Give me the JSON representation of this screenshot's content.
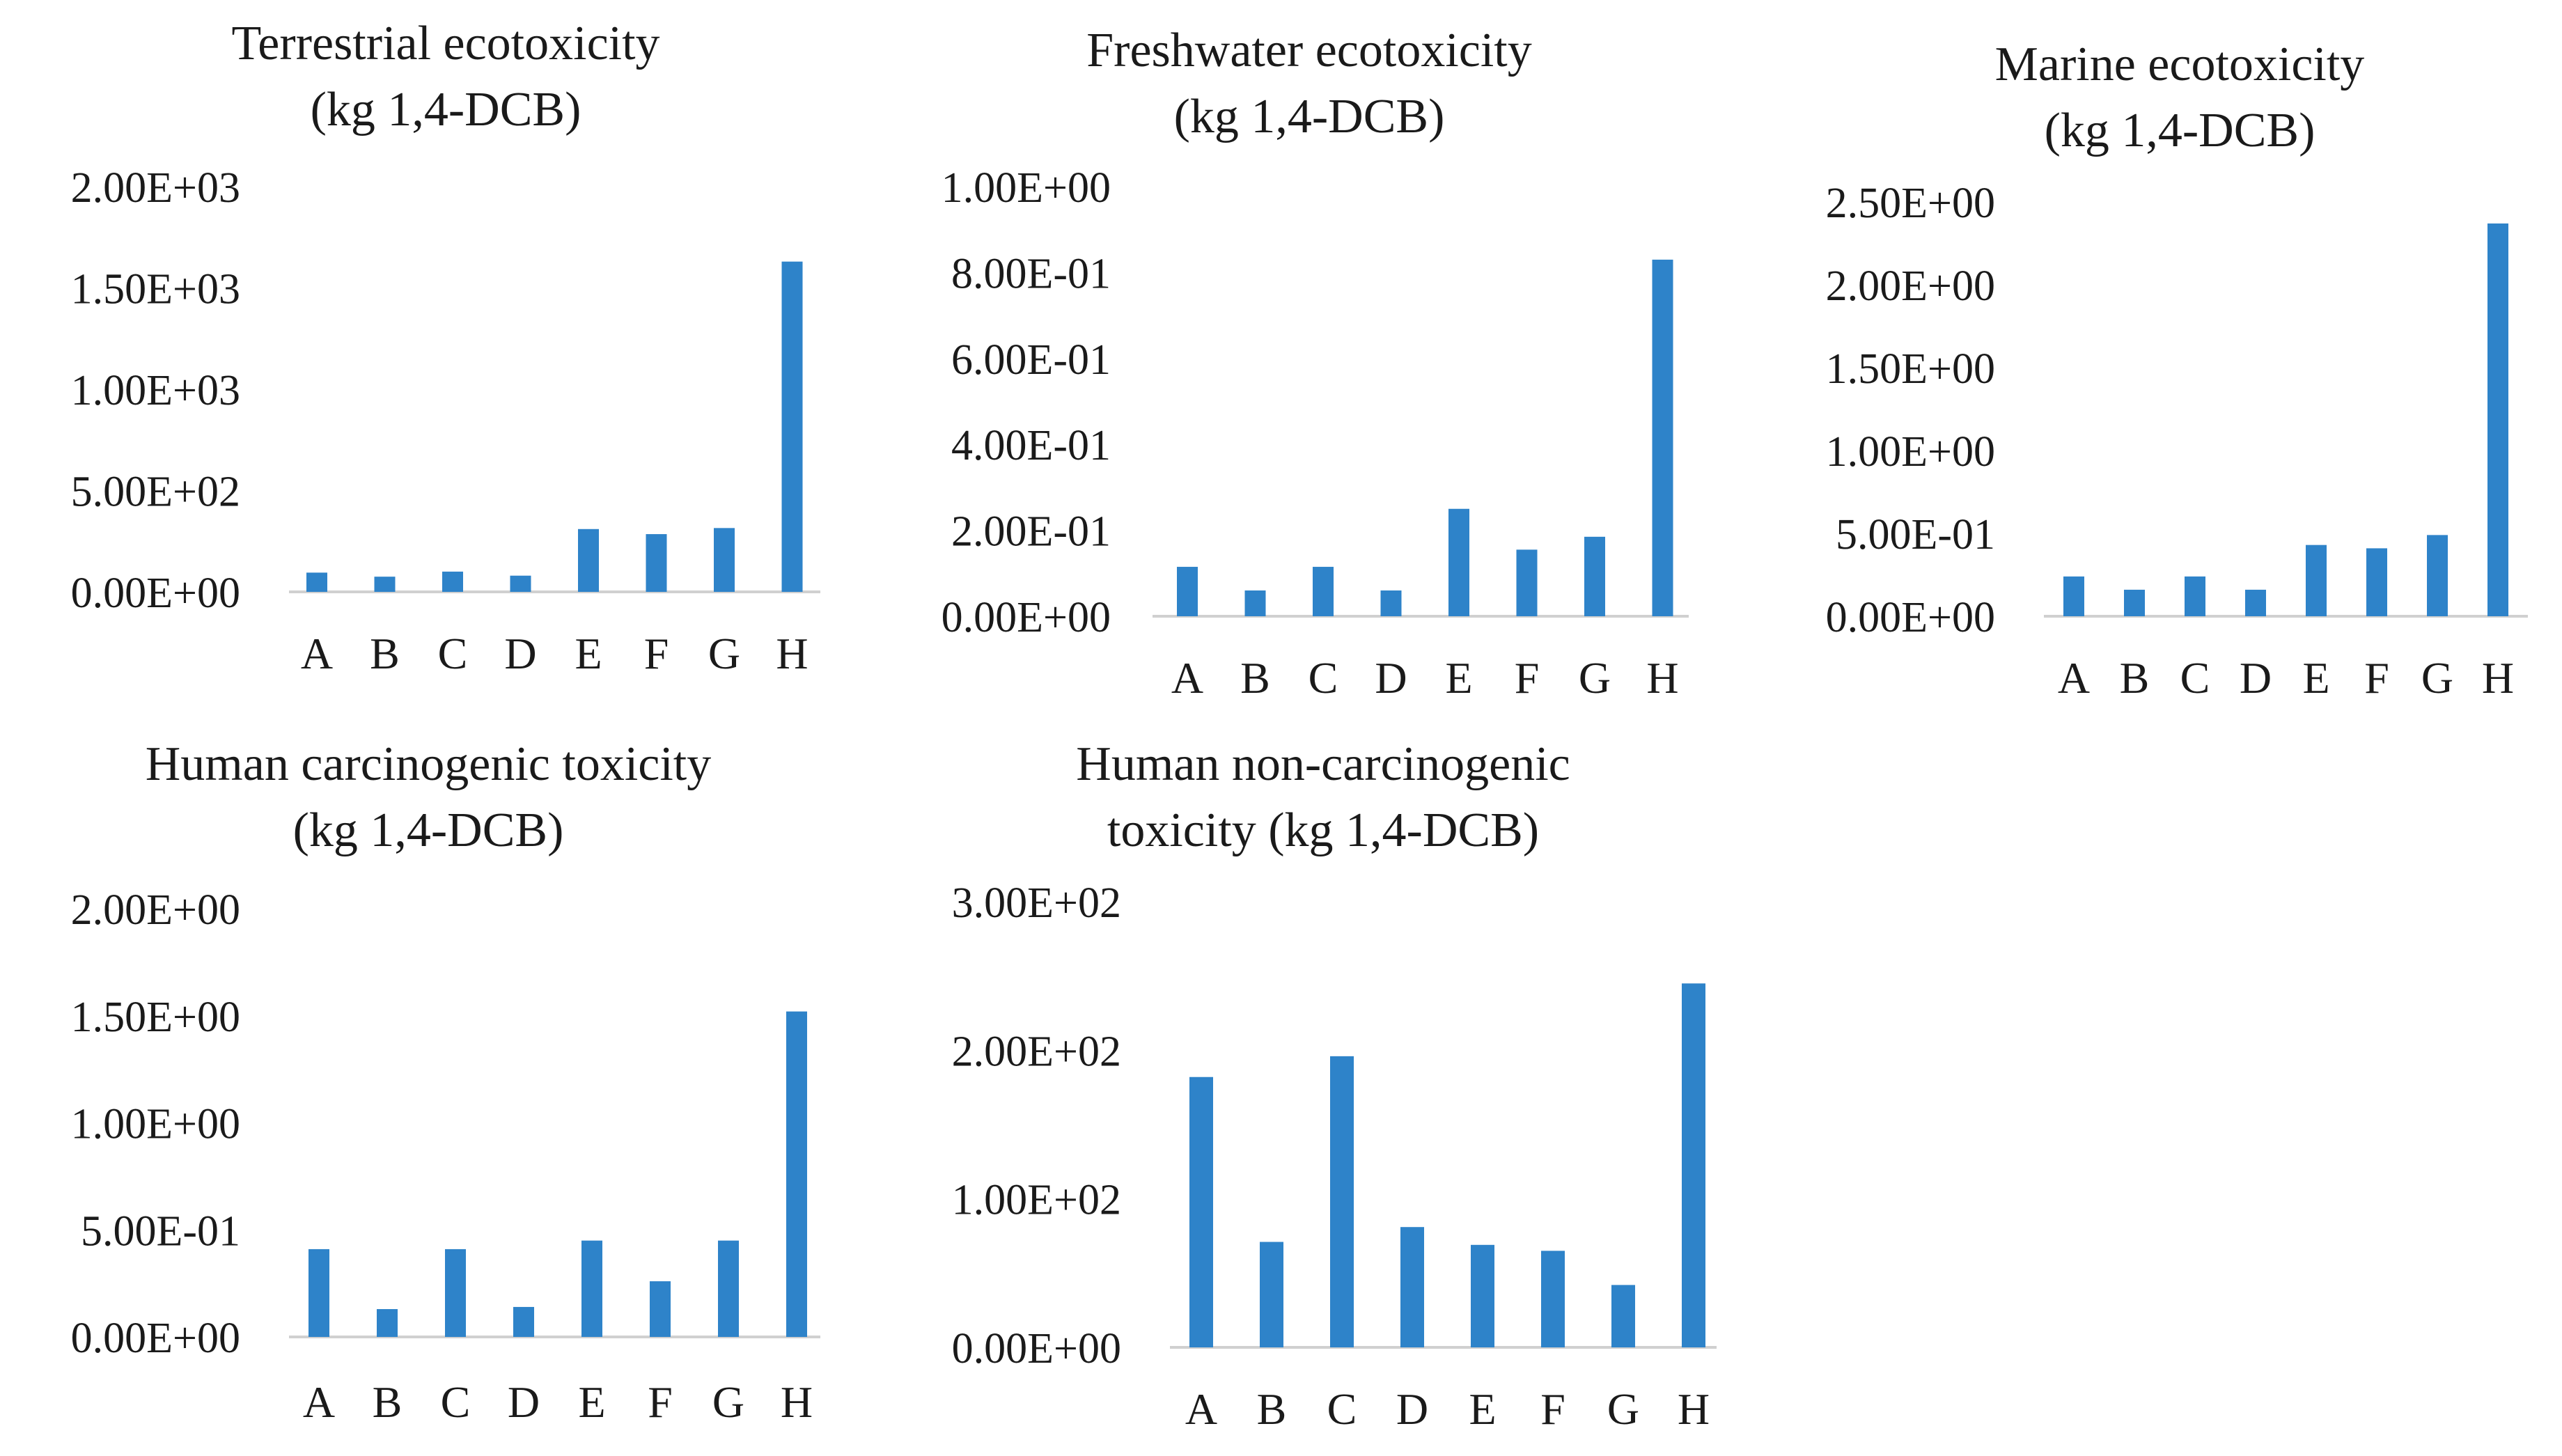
{
  "bar_color": "#2E83C9",
  "chart_data": [
    {
      "type": "bar",
      "title_lines": [
        "Terrestrial ecotoxicity",
        "(kg 1,4-DCB)"
      ],
      "categories": [
        "A",
        "B",
        "C",
        "D",
        "E",
        "F",
        "G",
        "H"
      ],
      "values": [
        95,
        75,
        100,
        80,
        310,
        285,
        315,
        1630
      ],
      "ylim": [
        0,
        2000
      ],
      "ytick_values": [
        0,
        500,
        1000,
        1500,
        2000
      ],
      "ytick_labels": [
        "0.00E+00",
        "5.00E+02",
        "1.00E+03",
        "1.50E+03",
        "2.00E+03"
      ],
      "xlabel": "",
      "ylabel": ""
    },
    {
      "type": "bar",
      "title_lines": [
        "Freshwater ecotoxicity",
        "(kg 1,4-DCB)"
      ],
      "categories": [
        "A",
        "B",
        "C",
        "D",
        "E",
        "F",
        "G",
        "H"
      ],
      "values": [
        0.115,
        0.06,
        0.115,
        0.06,
        0.25,
        0.155,
        0.185,
        0.83
      ],
      "ylim": [
        0,
        1.0
      ],
      "ytick_values": [
        0,
        0.2,
        0.4,
        0.6,
        0.8,
        1.0
      ],
      "ytick_labels": [
        "0.00E+00",
        "2.00E-01",
        "4.00E-01",
        "6.00E-01",
        "8.00E-01",
        "1.00E+00"
      ],
      "xlabel": "",
      "ylabel": ""
    },
    {
      "type": "bar",
      "title_lines": [
        "Marine ecotoxicity",
        "(kg 1,4-DCB)"
      ],
      "categories": [
        "A",
        "B",
        "C",
        "D",
        "E",
        "F",
        "G",
        "H"
      ],
      "values": [
        0.24,
        0.16,
        0.24,
        0.16,
        0.43,
        0.41,
        0.49,
        2.37
      ],
      "ylim": [
        0,
        2.5
      ],
      "ytick_values": [
        0,
        0.5,
        1.0,
        1.5,
        2.0,
        2.5
      ],
      "ytick_labels": [
        "0.00E+00",
        "5.00E-01",
        "1.00E+00",
        "1.50E+00",
        "2.00E+00",
        "2.50E+00"
      ],
      "xlabel": "",
      "ylabel": ""
    },
    {
      "type": "bar",
      "title_lines": [
        "Human carcinogenic toxicity",
        "(kg 1,4-DCB)"
      ],
      "categories": [
        "A",
        "B",
        "C",
        "D",
        "E",
        "F",
        "G",
        "H"
      ],
      "values": [
        0.41,
        0.13,
        0.41,
        0.14,
        0.45,
        0.26,
        0.45,
        1.52
      ],
      "ylim": [
        0,
        2.0
      ],
      "ytick_values": [
        0,
        0.5,
        1.0,
        1.5,
        2.0
      ],
      "ytick_labels": [
        "0.00E+00",
        "5.00E-01",
        "1.00E+00",
        "1.50E+00",
        "2.00E+00"
      ],
      "xlabel": "",
      "ylabel": ""
    },
    {
      "type": "bar",
      "title_lines": [
        "Human non-carcinogenic",
        "toxicity (kg 1,4-DCB)"
      ],
      "categories": [
        "A",
        "B",
        "C",
        "D",
        "E",
        "F",
        "G",
        "H"
      ],
      "values": [
        182,
        71,
        196,
        81,
        69,
        65,
        42,
        245
      ],
      "ylim": [
        0,
        300
      ],
      "ytick_values": [
        0,
        100,
        200,
        300
      ],
      "ytick_labels": [
        "0.00E+00",
        "1.00E+02",
        "2.00E+02",
        "3.00E+02"
      ],
      "xlabel": "",
      "ylabel": ""
    }
  ]
}
